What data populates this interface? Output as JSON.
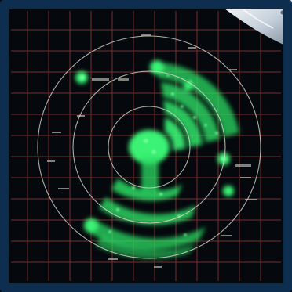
{
  "scene": {
    "description_kind": "radar-screen-photo",
    "colors": {
      "screen_background": "#05090d",
      "grid": "#a23a3a",
      "ring": "#d8d8c8",
      "echo": "#2ee86a",
      "echo_bright": "#6bff9b",
      "frame": "#0d2e4f",
      "bezel": "#c7d2dc"
    }
  }
}
